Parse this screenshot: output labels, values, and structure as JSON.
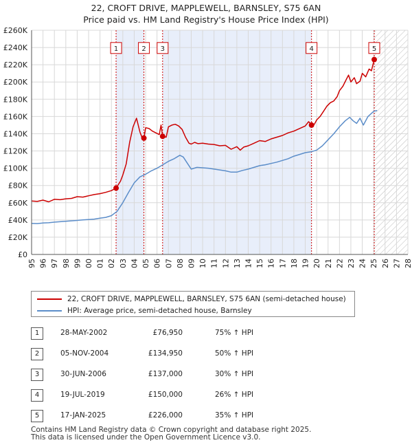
{
  "title_line1": "22, CROFT DRIVE, MAPPLEWELL, BARNSLEY, S75 6AN",
  "title_line2": "Price paid vs. HM Land Registry's House Price Index (HPI)",
  "chart_data": {
    "type": "line",
    "title": "22, CROFT DRIVE, MAPPLEWELL, BARNSLEY, S75 6AN",
    "subtitle": "Price paid vs. HM Land Registry's House Price Index (HPI)",
    "xlim": [
      1995,
      2028
    ],
    "ylim": [
      0,
      260000
    ],
    "x_ticks": [
      1995,
      1996,
      1997,
      1998,
      1999,
      2000,
      2001,
      2002,
      2003,
      2004,
      2005,
      2006,
      2007,
      2008,
      2009,
      2010,
      2011,
      2012,
      2013,
      2014,
      2015,
      2016,
      2017,
      2018,
      2019,
      2020,
      2021,
      2022,
      2023,
      2024,
      2025,
      2026,
      2027,
      2028
    ],
    "y_ticks": [
      0,
      20000,
      40000,
      60000,
      80000,
      100000,
      120000,
      140000,
      160000,
      180000,
      200000,
      220000,
      240000,
      260000
    ],
    "y_tick_labels": [
      "£0",
      "£20K",
      "£40K",
      "£60K",
      "£80K",
      "£100K",
      "£120K",
      "£140K",
      "£160K",
      "£180K",
      "£200K",
      "£220K",
      "£240K",
      "£260K"
    ],
    "grid": true,
    "shaded_ranges": [
      [
        2002.41,
        2004.85
      ],
      [
        2006.49,
        2019.55
      ]
    ],
    "hatched_after": 2025.05,
    "colors": {
      "property": "#cc0000",
      "hpi": "#5b8dc9",
      "shade": "#e8eefa",
      "vline": "#cc0000"
    },
    "series": [
      {
        "name": "22, CROFT DRIVE, MAPPLEWELL, BARNSLEY, S75 6AN (semi-detached house)",
        "color": "#cc0000",
        "x": [
          1995,
          1995.5,
          1996,
          1996.5,
          1997,
          1997.5,
          1998,
          1998.5,
          1999,
          1999.5,
          2000,
          2000.5,
          2001,
          2001.5,
          2002,
          2002.41,
          2002.8,
          2003,
          2003.3,
          2003.6,
          2003.9,
          2004.2,
          2004.5,
          2004.7,
          2004.85,
          2005,
          2005.3,
          2005.6,
          2005.9,
          2006.2,
          2006.35,
          2006.49,
          2006.8,
          2007,
          2007.3,
          2007.6,
          2007.9,
          2008.2,
          2008.5,
          2008.8,
          2009,
          2009.3,
          2009.6,
          2010,
          2010.5,
          2011,
          2011.5,
          2012,
          2012.5,
          2013,
          2013.3,
          2013.6,
          2014,
          2014.5,
          2015,
          2015.5,
          2016,
          2016.5,
          2017,
          2017.5,
          2018,
          2018.5,
          2019,
          2019.3,
          2019.55,
          2019.8,
          2020,
          2020.3,
          2020.6,
          2020.9,
          2021.2,
          2021.5,
          2021.8,
          2022,
          2022.3,
          2022.6,
          2022.8,
          2023,
          2023.3,
          2023.5,
          2023.8,
          2024,
          2024.3,
          2024.6,
          2024.8,
          2025.05
        ],
        "y": [
          62000,
          61500,
          63000,
          61000,
          64000,
          63500,
          64500,
          65000,
          67000,
          66500,
          68000,
          69500,
          70500,
          72000,
          74000,
          76950,
          85000,
          92000,
          105000,
          130000,
          148000,
          158000,
          142000,
          135000,
          134950,
          147000,
          146000,
          143000,
          141000,
          139000,
          150000,
          137000,
          136000,
          148000,
          150000,
          151000,
          149000,
          145000,
          136000,
          129000,
          128000,
          130000,
          128500,
          129000,
          128000,
          127500,
          126000,
          126500,
          122000,
          125000,
          121000,
          124500,
          126000,
          129000,
          132000,
          131000,
          134000,
          136000,
          138000,
          141000,
          143000,
          146000,
          149000,
          154000,
          150000,
          151000,
          156000,
          160000,
          166000,
          172000,
          176000,
          178000,
          183000,
          190000,
          195000,
          203000,
          208000,
          200000,
          205000,
          198000,
          201000,
          210000,
          206000,
          215000,
          213000,
          226000
        ]
      },
      {
        "name": "HPI: Average price, semi-detached house, Barnsley",
        "color": "#5b8dc9",
        "x": [
          1995,
          1995.5,
          1996,
          1996.5,
          1997,
          1997.5,
          1998,
          1998.5,
          1999,
          1999.5,
          2000,
          2000.5,
          2001,
          2001.5,
          2002,
          2002.5,
          2003,
          2003.5,
          2004,
          2004.5,
          2005,
          2005.5,
          2006,
          2006.5,
          2007,
          2007.5,
          2008,
          2008.3,
          2008.6,
          2009,
          2009.5,
          2010,
          2010.5,
          2011,
          2011.5,
          2012,
          2012.5,
          2013,
          2013.5,
          2014,
          2014.5,
          2015,
          2015.5,
          2016,
          2016.5,
          2017,
          2017.5,
          2018,
          2018.5,
          2019,
          2019.5,
          2020,
          2020.5,
          2021,
          2021.5,
          2022,
          2022.5,
          2022.9,
          2023.2,
          2023.5,
          2023.8,
          2024.1,
          2024.5,
          2025,
          2025.3
        ],
        "y": [
          36000,
          35800,
          36500,
          36800,
          37500,
          38000,
          38500,
          39000,
          39500,
          40000,
          40500,
          41000,
          42000,
          43000,
          45000,
          50000,
          60000,
          72000,
          83000,
          90000,
          93000,
          97000,
          100000,
          104000,
          108000,
          111000,
          115000,
          113000,
          107000,
          99000,
          101000,
          100500,
          100000,
          99000,
          98000,
          97000,
          95500,
          95500,
          97500,
          99000,
          101000,
          103000,
          104000,
          105500,
          107000,
          109000,
          111000,
          114000,
          116000,
          118000,
          119000,
          121000,
          126000,
          133000,
          140000,
          148000,
          155000,
          159000,
          155000,
          152000,
          158000,
          150000,
          160000,
          166000,
          167000
        ]
      }
    ],
    "sales": [
      {
        "n": "1",
        "x": 2002.41,
        "y": 76950
      },
      {
        "n": "2",
        "x": 2004.85,
        "y": 134950
      },
      {
        "n": "3",
        "x": 2006.49,
        "y": 137000
      },
      {
        "n": "4",
        "x": 2019.55,
        "y": 150000
      },
      {
        "n": "5",
        "x": 2025.05,
        "y": 226000
      }
    ]
  },
  "legend": {
    "property": "22, CROFT DRIVE, MAPPLEWELL, BARNSLEY, S75 6AN (semi-detached house)",
    "hpi": "HPI: Average price, semi-detached house, Barnsley"
  },
  "sales_table": [
    {
      "n": "1",
      "date": "28-MAY-2002",
      "price": "£76,950",
      "hpi": "75% ↑ HPI"
    },
    {
      "n": "2",
      "date": "05-NOV-2004",
      "price": "£134,950",
      "hpi": "50% ↑ HPI"
    },
    {
      "n": "3",
      "date": "30-JUN-2006",
      "price": "£137,000",
      "hpi": "30% ↑ HPI"
    },
    {
      "n": "4",
      "date": "19-JUL-2019",
      "price": "£150,000",
      "hpi": "26% ↑ HPI"
    },
    {
      "n": "5",
      "date": "17-JAN-2025",
      "price": "£226,000",
      "hpi": "35% ↑ HPI"
    }
  ],
  "footer": {
    "line1": "Contains HM Land Registry data © Crown copyright and database right 2025.",
    "line2": "This data is licensed under the Open Government Licence v3.0."
  }
}
